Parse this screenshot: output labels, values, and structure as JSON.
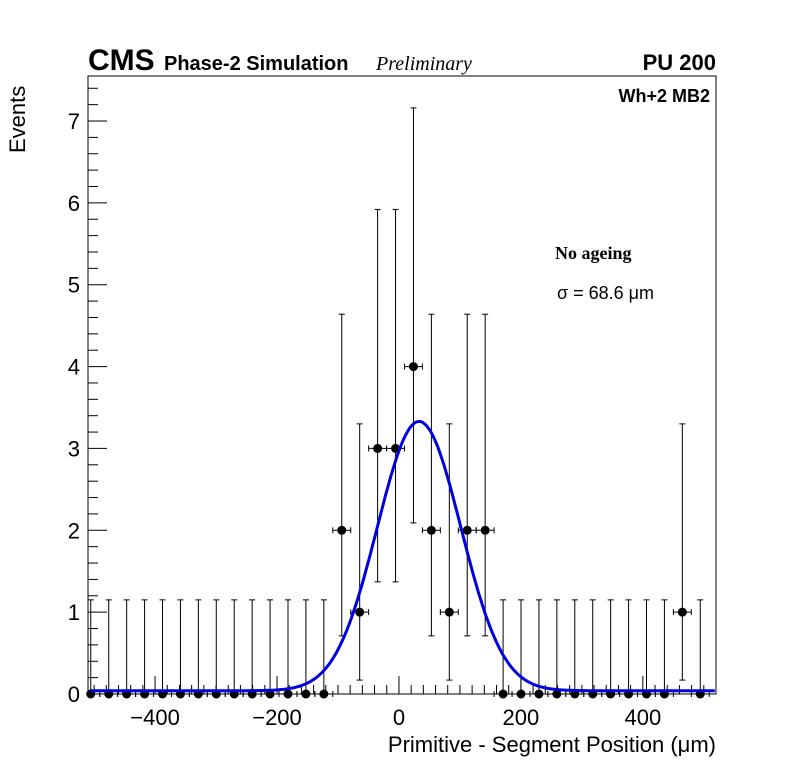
{
  "header": {
    "experiment": "CMS",
    "simulation": "Phase-2 Simulation",
    "status": "Preliminary",
    "pileup": "PU 200"
  },
  "labels": {
    "region": "Wh+2 MB2",
    "condition": "No ageing",
    "sigma": "σ = 68.6 μm"
  },
  "chart_data": {
    "type": "scatter",
    "title": "",
    "xlabel": "Primitive - Segment Position (μm)",
    "ylabel": "Events",
    "xlim": [
      -510,
      520
    ],
    "ylim": [
      0,
      7.55
    ],
    "x_ticks": [
      -400,
      -200,
      0,
      200,
      400
    ],
    "x_tick_labels": [
      "−400",
      "−200",
      "0",
      "200",
      "400"
    ],
    "y_ticks": [
      0,
      1,
      2,
      3,
      4,
      5,
      6,
      7
    ],
    "y_tick_labels": [
      "0",
      "1",
      "2",
      "3",
      "4",
      "5",
      "6",
      "7"
    ],
    "bin_width": 29.4,
    "series": [
      {
        "name": "data",
        "style": "markers-with-errors",
        "color": "#000000",
        "x": [
          -505.5,
          -476,
          -446.6,
          -417.2,
          -387.8,
          -358.4,
          -329,
          -299.6,
          -270.2,
          -240.8,
          -211.4,
          -182,
          -152.6,
          -123.2,
          -93.8,
          -64.4,
          -35,
          -5.6,
          23.8,
          53.2,
          82.6,
          112,
          141.4,
          170.8,
          200.2,
          229.6,
          259,
          288.4,
          317.8,
          347.2,
          376.6,
          406,
          435.4,
          464.8,
          494.2
        ],
        "y": [
          0,
          0,
          0,
          0,
          0,
          0,
          0,
          0,
          0,
          0,
          0,
          0,
          0,
          0,
          2,
          1,
          3,
          3,
          4,
          2,
          1,
          2,
          2,
          0,
          0,
          0,
          0,
          0,
          0,
          0,
          0,
          0,
          0,
          1,
          0
        ],
        "y_err_low": [
          0,
          0,
          0,
          0,
          0,
          0,
          0,
          0,
          0,
          0,
          0,
          0,
          0,
          0,
          1.29,
          0.83,
          1.63,
          1.63,
          1.91,
          1.29,
          0.83,
          1.29,
          1.29,
          0,
          0,
          0,
          0,
          0,
          0,
          0,
          0,
          0,
          0,
          0.83,
          0
        ],
        "y_err_high": [
          1.15,
          1.15,
          1.15,
          1.15,
          1.15,
          1.15,
          1.15,
          1.15,
          1.15,
          1.15,
          1.15,
          1.15,
          1.15,
          1.15,
          2.64,
          2.3,
          2.92,
          2.92,
          3.16,
          2.64,
          2.3,
          2.64,
          2.64,
          1.15,
          1.15,
          1.15,
          1.15,
          1.15,
          1.15,
          1.15,
          1.15,
          1.15,
          1.15,
          2.3,
          1.15
        ]
      },
      {
        "name": "gaussian fit",
        "style": "line",
        "color": "#0000dd",
        "mean": 33,
        "sigma": 68.6,
        "amplitude": 3.29,
        "baseline": 0.04,
        "range": [
          -505,
          520
        ]
      }
    ]
  }
}
